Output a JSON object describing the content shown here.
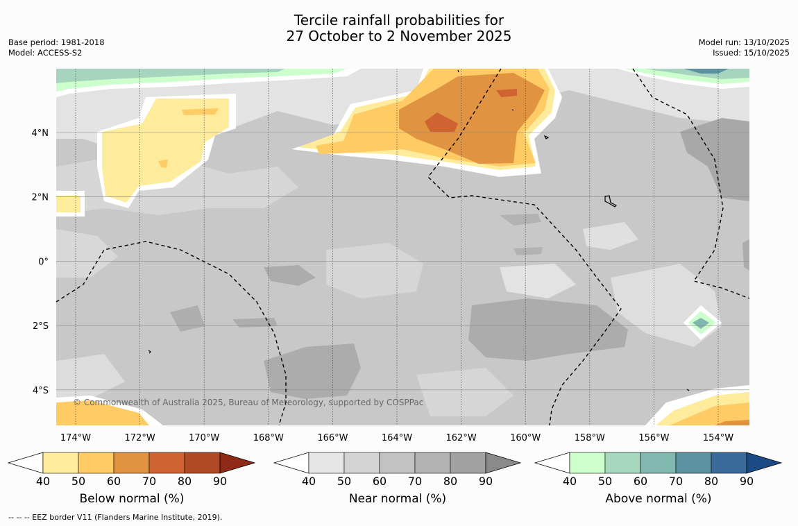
{
  "title_line1": "Tercile rainfall probabilities for",
  "title_line2": "27 October to 2 November 2025",
  "base_period": "Base period: 1981-2018",
  "model": "Model: ACCESS-S2",
  "model_run": "Model run: 13/10/2025",
  "issued": "Issued: 15/10/2025",
  "map": {
    "lon_labels": [
      "174°W",
      "172°W",
      "170°W",
      "168°W",
      "166°W",
      "164°W",
      "162°W",
      "160°W",
      "158°W",
      "156°W",
      "154°W"
    ],
    "lat_labels": [
      "4°N",
      "2°N",
      "0°",
      "2°S",
      "4°S"
    ],
    "copyright": "© Commonwealth of Australia 2025, Bureau of Meteorology, supported by COSPPac"
  },
  "colorbars": [
    {
      "label": "Below normal (%)",
      "ticks": [
        "40",
        "50",
        "60",
        "70",
        "80",
        "90"
      ],
      "colors": [
        "#ffffff",
        "#ffeb9c",
        "#ffcb64",
        "#e09442",
        "#cf6432",
        "#b04a26",
        "#8e2a16"
      ]
    },
    {
      "label": "Near normal (%)",
      "ticks": [
        "40",
        "50",
        "60",
        "70",
        "80",
        "90"
      ],
      "colors": [
        "#ffffff",
        "#e6e6e6",
        "#d4d4d4",
        "#c2c2c2",
        "#b2b2b2",
        "#a2a2a2",
        "#8a8a8a"
      ]
    },
    {
      "label": "Above normal (%)",
      "ticks": [
        "40",
        "50",
        "60",
        "70",
        "80",
        "90"
      ],
      "colors": [
        "#ffffff",
        "#ccffcc",
        "#a6d8c0",
        "#80b8b0",
        "#5c92a0",
        "#3a6a9a",
        "#1c4a84"
      ]
    }
  ],
  "footer": "--  --  -- EEZ border V11 (Flanders Marine Institute, 2019)."
}
